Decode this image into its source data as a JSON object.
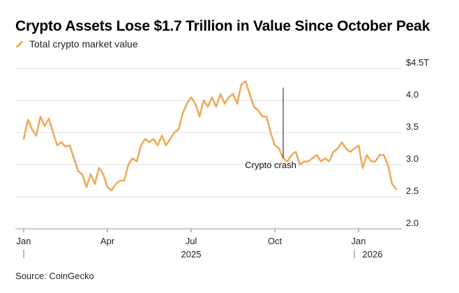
{
  "chart_data": {
    "type": "line",
    "title": "Crypto Assets Lose $1.7 Trillion in Value Since October Peak",
    "legend": [
      "Total crypto market value"
    ],
    "series": [
      {
        "name": "Total crypto market value",
        "color": "#f0a95a",
        "x": [
          0,
          0.15,
          0.3,
          0.45,
          0.6,
          0.75,
          0.9,
          1.05,
          1.2,
          1.35,
          1.5,
          1.65,
          1.8,
          1.95,
          2.1,
          2.25,
          2.4,
          2.55,
          2.7,
          2.85,
          3.0,
          3.15,
          3.3,
          3.45,
          3.6,
          3.75,
          3.9,
          4.05,
          4.2,
          4.35,
          4.5,
          4.65,
          4.8,
          4.95,
          5.1,
          5.25,
          5.4,
          5.55,
          5.7,
          5.85,
          6.0,
          6.15,
          6.3,
          6.45,
          6.6,
          6.75,
          6.9,
          7.05,
          7.2,
          7.35,
          7.5,
          7.65,
          7.8,
          7.95,
          8.1,
          8.25,
          8.4,
          8.55,
          8.7,
          8.85,
          9.0,
          9.15,
          9.3,
          9.45,
          9.6,
          9.75,
          9.9,
          10.05,
          10.2,
          10.35,
          10.5,
          10.65,
          10.8,
          10.95,
          11.1,
          11.25,
          11.4,
          11.55,
          11.7,
          11.85,
          12.0,
          12.15,
          12.3,
          12.45,
          12.6,
          12.75,
          12.9,
          13.05,
          13.2,
          13.35
        ],
        "values": [
          3.4,
          3.7,
          3.55,
          3.45,
          3.75,
          3.6,
          3.72,
          3.5,
          3.3,
          3.35,
          3.28,
          3.3,
          3.1,
          2.9,
          2.85,
          2.65,
          2.85,
          2.7,
          2.95,
          2.85,
          2.65,
          2.6,
          2.7,
          2.75,
          2.75,
          3.0,
          3.1,
          3.05,
          3.3,
          3.4,
          3.35,
          3.4,
          3.3,
          3.45,
          3.3,
          3.4,
          3.5,
          3.55,
          3.8,
          3.95,
          4.05,
          3.95,
          3.75,
          4.0,
          3.9,
          4.05,
          3.9,
          4.1,
          3.95,
          4.05,
          4.1,
          3.95,
          4.25,
          4.3,
          4.1,
          3.9,
          3.85,
          3.75,
          3.75,
          3.5,
          3.3,
          3.25,
          3.1,
          3.05,
          3.15,
          3.2,
          3.0,
          3.05,
          3.05,
          3.1,
          3.15,
          3.05,
          3.1,
          3.05,
          3.2,
          3.25,
          3.35,
          3.25,
          3.2,
          3.25,
          3.3,
          2.95,
          3.15,
          3.05,
          3.05,
          3.15,
          3.15,
          3.0,
          2.7,
          2.62
        ]
      }
    ],
    "x_ticks": [
      {
        "value": 0,
        "label": "Jan"
      },
      {
        "value": 3,
        "label": "Apr"
      },
      {
        "value": 6,
        "label": "Jul"
      },
      {
        "value": 9,
        "label": "Oct"
      },
      {
        "value": 12,
        "label": "Jan"
      }
    ],
    "year_labels": [
      {
        "value": 6,
        "label": "2025"
      },
      {
        "value": 12.5,
        "label": "2026"
      }
    ],
    "y_ticks": [
      {
        "value": 4.5,
        "label": "$4.5T"
      },
      {
        "value": 4.0,
        "label": "4.0"
      },
      {
        "value": 3.5,
        "label": "3.5"
      },
      {
        "value": 3.0,
        "label": "3.0"
      },
      {
        "value": 2.5,
        "label": "2.5"
      },
      {
        "value": 2.0,
        "label": "2.0"
      }
    ],
    "ylim": [
      2.0,
      4.5
    ],
    "xlim": [
      0,
      13.35
    ],
    "annotation": {
      "label": "Crypto crash",
      "x": 9.3,
      "y_top": 4.2,
      "y_bottom": 3.1
    },
    "source": "Source: CoinGecko",
    "grid": true,
    "legend_position": "top-left"
  }
}
